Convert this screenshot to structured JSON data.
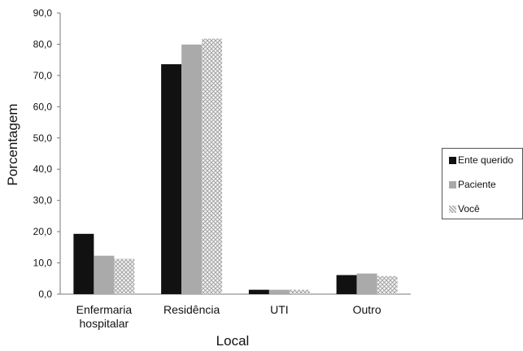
{
  "chart_data": {
    "type": "bar",
    "xlabel": "Local",
    "ylabel": "Porcentagem",
    "ylim": [
      0,
      90
    ],
    "yticks": [
      "0,0",
      "10,0",
      "20,0",
      "30,0",
      "40,0",
      "50,0",
      "60,0",
      "70,0",
      "80,0",
      "90,0"
    ],
    "categories": [
      [
        "Enfermaria",
        "hospitalar"
      ],
      [
        "Residência"
      ],
      [
        "UTI"
      ],
      [
        "Outro"
      ]
    ],
    "series": [
      {
        "name": "Ente querido",
        "color": "#111111",
        "pattern": "solid",
        "values": [
          19.3,
          73.6,
          1.4,
          6.1
        ]
      },
      {
        "name": "Paciente",
        "color": "#aaaaaa",
        "pattern": "solid",
        "values": [
          12.3,
          79.9,
          1.4,
          6.6
        ]
      },
      {
        "name": "Você",
        "color": "#bbbbbb",
        "pattern": "crosshatch",
        "values": [
          11.3,
          81.8,
          1.4,
          5.8
        ]
      }
    ],
    "legend_position": "right",
    "grid": false
  }
}
